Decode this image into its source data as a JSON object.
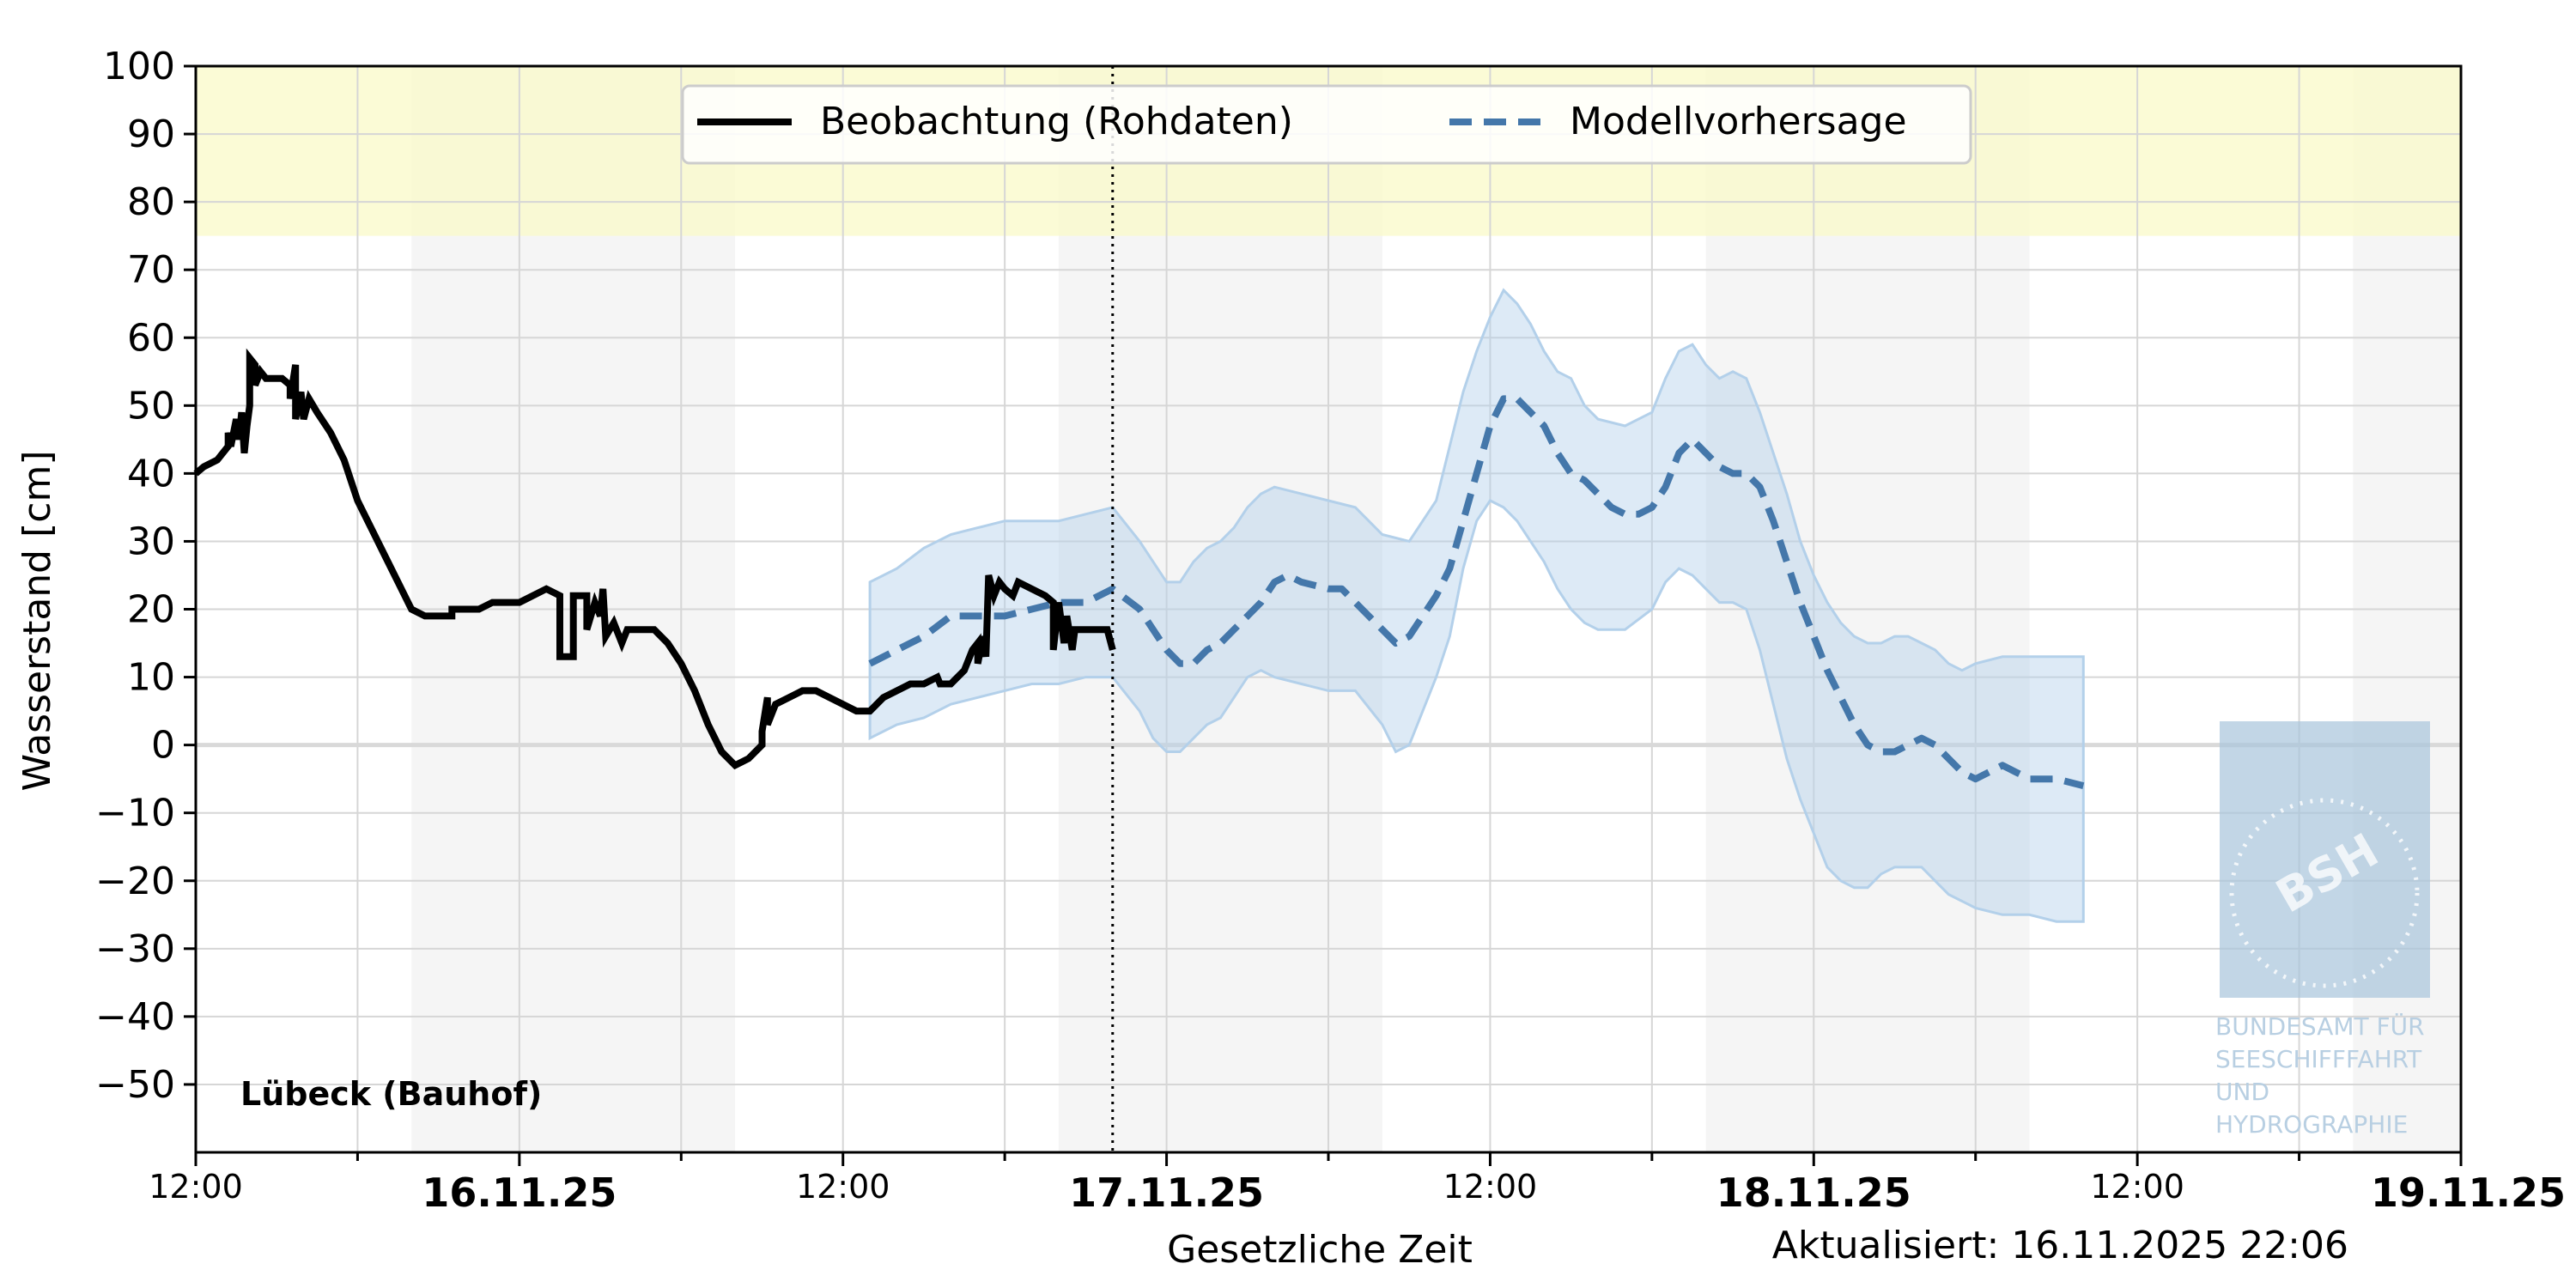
{
  "chart_data": {
    "type": "line",
    "xlabel": "Gesetzliche Zeit",
    "ylabel": "Wasserstand [cm]",
    "station": "Lübeck (Bauhof)",
    "updated": "Aktualisiert: 16.11.2025 22:06",
    "legend": {
      "placement": "top-center",
      "observation": "Beobachtung (Rohdaten)",
      "forecast": "Modellvorhersage"
    },
    "ylim": [
      -60,
      100
    ],
    "yticks": [
      100,
      90,
      80,
      70,
      60,
      50,
      40,
      30,
      20,
      10,
      0,
      -10,
      -20,
      -30,
      -40,
      -50
    ],
    "ytick_labels": [
      "100",
      "90",
      "80",
      "70",
      "60",
      "50",
      "40",
      "30",
      "20",
      "10",
      "0",
      "−10",
      "−20",
      "−30",
      "−40",
      "−50"
    ],
    "x_unit": "hours since 15.11.25 12:00",
    "xlim": [
      0,
      84
    ],
    "xticks_major": [
      {
        "x": 0,
        "label": "12:00",
        "bold": false
      },
      {
        "x": 12,
        "label": "16.11.25",
        "bold": true
      },
      {
        "x": 24,
        "label": "12:00",
        "bold": false
      },
      {
        "x": 36,
        "label": "17.11.25",
        "bold": true
      },
      {
        "x": 48,
        "label": "12:00",
        "bold": false
      },
      {
        "x": 60,
        "label": "18.11.25",
        "bold": true
      },
      {
        "x": 72,
        "label": "12:00",
        "bold": false
      },
      {
        "x": 84,
        "label": "19.11.25",
        "bold": true
      }
    ],
    "night_bands": [
      [
        8,
        20
      ],
      [
        32,
        44
      ],
      [
        56,
        68
      ],
      [
        80,
        84
      ]
    ],
    "warning_band": [
      75,
      100
    ],
    "now_x": 34,
    "grid": true,
    "colors": {
      "observation": "#000000",
      "forecast": "#4477aa",
      "band": "#b3d0ea",
      "warning": "#fafac8",
      "night": "#ebebeb"
    },
    "observation": [
      [
        0,
        40
      ],
      [
        0.3,
        41
      ],
      [
        0.8,
        42
      ],
      [
        1.2,
        44
      ],
      [
        1.2,
        46
      ],
      [
        1.3,
        44
      ],
      [
        1.5,
        48
      ],
      [
        1.6,
        45
      ],
      [
        1.7,
        49
      ],
      [
        1.8,
        43
      ],
      [
        1.9,
        47
      ],
      [
        2.0,
        50
      ],
      [
        2.0,
        57
      ],
      [
        2.2,
        56
      ],
      [
        2.2,
        53
      ],
      [
        2.4,
        55
      ],
      [
        2.6,
        54
      ],
      [
        3.2,
        54
      ],
      [
        3.5,
        53
      ],
      [
        3.5,
        51
      ],
      [
        3.7,
        56
      ],
      [
        3.7,
        48
      ],
      [
        3.9,
        52
      ],
      [
        4.0,
        48
      ],
      [
        4.2,
        51
      ],
      [
        4.5,
        49
      ],
      [
        5.0,
        46
      ],
      [
        5.5,
        42
      ],
      [
        6.0,
        36
      ],
      [
        6.5,
        32
      ],
      [
        7.0,
        28
      ],
      [
        7.5,
        24
      ],
      [
        8.0,
        20
      ],
      [
        8.5,
        19
      ],
      [
        9.5,
        19
      ],
      [
        9.5,
        20
      ],
      [
        10.5,
        20
      ],
      [
        11.0,
        21
      ],
      [
        12.0,
        21
      ],
      [
        12.5,
        22
      ],
      [
        13.0,
        23
      ],
      [
        13.5,
        22
      ],
      [
        13.5,
        13
      ],
      [
        14.0,
        13
      ],
      [
        14.0,
        22
      ],
      [
        14.5,
        22
      ],
      [
        14.5,
        17
      ],
      [
        14.8,
        21
      ],
      [
        15.0,
        19
      ],
      [
        15.1,
        23
      ],
      [
        15.2,
        16
      ],
      [
        15.5,
        18
      ],
      [
        15.8,
        15
      ],
      [
        16.0,
        17
      ],
      [
        17.0,
        17
      ],
      [
        17.5,
        15
      ],
      [
        18.0,
        12
      ],
      [
        18.5,
        8
      ],
      [
        19.0,
        3
      ],
      [
        19.5,
        -1
      ],
      [
        20.0,
        -3
      ],
      [
        20.5,
        -2
      ],
      [
        21.0,
        0
      ],
      [
        21.0,
        2
      ],
      [
        21.2,
        7
      ],
      [
        21.2,
        3
      ],
      [
        21.5,
        6
      ],
      [
        22.0,
        7
      ],
      [
        22.5,
        8
      ],
      [
        23.0,
        8
      ],
      [
        23.5,
        7
      ],
      [
        24.0,
        6
      ],
      [
        24.5,
        5
      ],
      [
        25.0,
        5
      ],
      [
        25.5,
        7
      ],
      [
        26.0,
        8
      ],
      [
        26.5,
        9
      ],
      [
        27.0,
        9
      ],
      [
        27.5,
        10
      ],
      [
        27.6,
        9
      ],
      [
        28.0,
        9
      ],
      [
        28.5,
        11
      ],
      [
        28.8,
        14
      ],
      [
        29.0,
        15
      ],
      [
        29.0,
        12
      ],
      [
        29.2,
        16
      ],
      [
        29.3,
        13
      ],
      [
        29.4,
        25
      ],
      [
        29.6,
        22
      ],
      [
        29.8,
        24
      ],
      [
        30.0,
        23
      ],
      [
        30.3,
        22
      ],
      [
        30.5,
        24
      ],
      [
        31.0,
        23
      ],
      [
        31.5,
        22
      ],
      [
        31.8,
        21
      ],
      [
        31.8,
        14
      ],
      [
        32.0,
        21
      ],
      [
        32.2,
        15
      ],
      [
        32.3,
        19
      ],
      [
        32.5,
        14
      ],
      [
        32.6,
        17
      ],
      [
        33.0,
        17
      ],
      [
        33.5,
        17
      ],
      [
        33.8,
        17
      ],
      [
        34.0,
        14
      ]
    ],
    "forecast": [
      [
        25,
        12
      ],
      [
        26,
        14
      ],
      [
        27,
        16
      ],
      [
        28,
        19
      ],
      [
        29,
        19
      ],
      [
        30,
        19
      ],
      [
        31,
        20
      ],
      [
        32,
        21
      ],
      [
        33,
        21
      ],
      [
        34,
        23
      ],
      [
        35,
        20
      ],
      [
        35.5,
        17
      ],
      [
        36,
        14
      ],
      [
        36.5,
        12
      ],
      [
        37,
        12
      ],
      [
        37.5,
        14
      ],
      [
        38,
        15
      ],
      [
        38.5,
        17
      ],
      [
        39,
        19
      ],
      [
        39.5,
        21
      ],
      [
        40,
        24
      ],
      [
        40.5,
        25
      ],
      [
        41,
        24
      ],
      [
        42,
        23
      ],
      [
        42.5,
        23
      ],
      [
        43,
        21
      ],
      [
        44,
        17
      ],
      [
        44.5,
        15
      ],
      [
        45,
        16
      ],
      [
        45.5,
        19
      ],
      [
        46,
        22
      ],
      [
        46.5,
        26
      ],
      [
        47,
        33
      ],
      [
        47.5,
        40
      ],
      [
        48,
        47
      ],
      [
        48.5,
        51
      ],
      [
        49,
        51
      ],
      [
        49.5,
        49
      ],
      [
        50,
        47
      ],
      [
        50.5,
        43
      ],
      [
        51,
        40
      ],
      [
        51.5,
        39
      ],
      [
        52,
        37
      ],
      [
        52.5,
        35
      ],
      [
        53,
        34
      ],
      [
        53.5,
        34
      ],
      [
        54,
        35
      ],
      [
        54.5,
        38
      ],
      [
        55,
        43
      ],
      [
        55.5,
        45
      ],
      [
        56,
        43
      ],
      [
        56.5,
        41
      ],
      [
        57,
        40
      ],
      [
        57.5,
        40
      ],
      [
        58,
        38
      ],
      [
        58.5,
        33
      ],
      [
        59,
        27
      ],
      [
        59.5,
        21
      ],
      [
        60,
        16
      ],
      [
        60.5,
        11
      ],
      [
        61,
        7
      ],
      [
        61.5,
        3
      ],
      [
        62,
        0
      ],
      [
        62.5,
        -1
      ],
      [
        63,
        -1
      ],
      [
        63.5,
        0
      ],
      [
        64,
        1
      ],
      [
        64.5,
        0
      ],
      [
        65,
        -2
      ],
      [
        65.5,
        -4
      ],
      [
        66,
        -5
      ],
      [
        67,
        -3
      ],
      [
        67.5,
        -4
      ],
      [
        68,
        -5
      ],
      [
        69,
        -5
      ],
      [
        70,
        -6
      ]
    ],
    "band_upper": [
      [
        25,
        24
      ],
      [
        26,
        26
      ],
      [
        27,
        29
      ],
      [
        28,
        31
      ],
      [
        29,
        32
      ],
      [
        30,
        33
      ],
      [
        31,
        33
      ],
      [
        32,
        33
      ],
      [
        33,
        34
      ],
      [
        34,
        35
      ],
      [
        35,
        30
      ],
      [
        35.5,
        27
      ],
      [
        36,
        24
      ],
      [
        36.5,
        24
      ],
      [
        37,
        27
      ],
      [
        37.5,
        29
      ],
      [
        38,
        30
      ],
      [
        38.5,
        32
      ],
      [
        39,
        35
      ],
      [
        39.5,
        37
      ],
      [
        40,
        38
      ],
      [
        41,
        37
      ],
      [
        42,
        36
      ],
      [
        43,
        35
      ],
      [
        44,
        31
      ],
      [
        45,
        30
      ],
      [
        45.5,
        33
      ],
      [
        46,
        36
      ],
      [
        46.5,
        44
      ],
      [
        47,
        52
      ],
      [
        47.5,
        58
      ],
      [
        48,
        63
      ],
      [
        48.5,
        67
      ],
      [
        49,
        65
      ],
      [
        49.5,
        62
      ],
      [
        50,
        58
      ],
      [
        50.5,
        55
      ],
      [
        51,
        54
      ],
      [
        51.5,
        50
      ],
      [
        52,
        48
      ],
      [
        53,
        47
      ],
      [
        54,
        49
      ],
      [
        54.5,
        54
      ],
      [
        55,
        58
      ],
      [
        55.5,
        59
      ],
      [
        56,
        56
      ],
      [
        56.5,
        54
      ],
      [
        57,
        55
      ],
      [
        57.5,
        54
      ],
      [
        58,
        49
      ],
      [
        58.5,
        43
      ],
      [
        59,
        37
      ],
      [
        59.5,
        30
      ],
      [
        60,
        25
      ],
      [
        60.5,
        21
      ],
      [
        61,
        18
      ],
      [
        61.5,
        16
      ],
      [
        62,
        15
      ],
      [
        62.5,
        15
      ],
      [
        63,
        16
      ],
      [
        63.5,
        16
      ],
      [
        64,
        15
      ],
      [
        64.5,
        14
      ],
      [
        65,
        12
      ],
      [
        65.5,
        11
      ],
      [
        66,
        12
      ],
      [
        67,
        13
      ],
      [
        68,
        13
      ],
      [
        69,
        13
      ],
      [
        70,
        13
      ]
    ],
    "band_lower": [
      [
        25,
        1
      ],
      [
        26,
        3
      ],
      [
        27,
        4
      ],
      [
        28,
        6
      ],
      [
        29,
        7
      ],
      [
        30,
        8
      ],
      [
        31,
        9
      ],
      [
        32,
        9
      ],
      [
        33,
        10
      ],
      [
        34,
        10
      ],
      [
        35,
        5
      ],
      [
        35.5,
        1
      ],
      [
        36,
        -1
      ],
      [
        36.5,
        -1
      ],
      [
        37,
        1
      ],
      [
        37.5,
        3
      ],
      [
        38,
        4
      ],
      [
        38.5,
        7
      ],
      [
        39,
        10
      ],
      [
        39.5,
        11
      ],
      [
        40,
        10
      ],
      [
        41,
        9
      ],
      [
        42,
        8
      ],
      [
        43,
        8
      ],
      [
        44,
        3
      ],
      [
        44.5,
        -1
      ],
      [
        45,
        0
      ],
      [
        45.5,
        5
      ],
      [
        46,
        10
      ],
      [
        46.5,
        16
      ],
      [
        47,
        26
      ],
      [
        47.5,
        33
      ],
      [
        48,
        36
      ],
      [
        48.5,
        35
      ],
      [
        49,
        33
      ],
      [
        49.5,
        30
      ],
      [
        50,
        27
      ],
      [
        50.5,
        23
      ],
      [
        51,
        20
      ],
      [
        51.5,
        18
      ],
      [
        52,
        17
      ],
      [
        53,
        17
      ],
      [
        54,
        20
      ],
      [
        54.5,
        24
      ],
      [
        55,
        26
      ],
      [
        55.5,
        25
      ],
      [
        56,
        23
      ],
      [
        56.5,
        21
      ],
      [
        57,
        21
      ],
      [
        57.5,
        20
      ],
      [
        58,
        14
      ],
      [
        58.5,
        6
      ],
      [
        59,
        -2
      ],
      [
        59.5,
        -8
      ],
      [
        60,
        -13
      ],
      [
        60.5,
        -18
      ],
      [
        61,
        -20
      ],
      [
        61.5,
        -21
      ],
      [
        62,
        -21
      ],
      [
        62.5,
        -19
      ],
      [
        63,
        -18
      ],
      [
        63.5,
        -18
      ],
      [
        64,
        -18
      ],
      [
        64.5,
        -20
      ],
      [
        65,
        -22
      ],
      [
        65.5,
        -23
      ],
      [
        66,
        -24
      ],
      [
        67,
        -25
      ],
      [
        68,
        -25
      ],
      [
        69,
        -26
      ],
      [
        70,
        -26
      ]
    ]
  },
  "watermark": {
    "logo_text": "BSH",
    "caption": [
      "BUNDESAMT FÜR",
      "SEESCHIFFFAHRT",
      "UND",
      "HYDROGRAPHIE"
    ]
  }
}
